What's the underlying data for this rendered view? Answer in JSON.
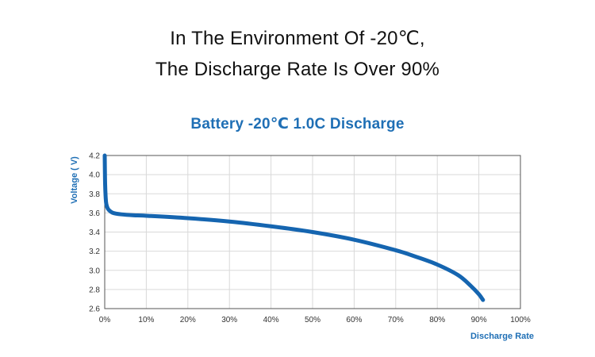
{
  "headline": {
    "line1": "In The Environment Of -20℃,",
    "line2": "The Discharge Rate Is Over 90%"
  },
  "colors": {
    "accent": "#1f6fb5",
    "curve": "#1565b0",
    "grid": "#d9d9d9",
    "frame": "#555555"
  },
  "chart_data": {
    "type": "line",
    "title": "Battery -20℃ 1.0C Discharge",
    "xlabel": "Discharge Rate",
    "ylabel": "Voltage ( V)",
    "xlim": [
      0,
      100
    ],
    "ylim": [
      2.6,
      4.2
    ],
    "x_ticks": [
      0,
      10,
      20,
      30,
      40,
      50,
      60,
      70,
      80,
      90,
      100
    ],
    "x_tick_labels": [
      "0%",
      "10%",
      "20%",
      "30%",
      "40%",
      "50%",
      "60%",
      "70%",
      "80%",
      "90%",
      "100%"
    ],
    "y_ticks": [
      2.6,
      2.8,
      3.0,
      3.2,
      3.4,
      3.6,
      3.8,
      4.0,
      4.2
    ],
    "y_tick_labels": [
      "2.6",
      "2.8",
      "3.0",
      "3.2",
      "3.4",
      "3.6",
      "3.8",
      "4.0",
      "4.2"
    ],
    "grid": true,
    "series": [
      {
        "name": "Battery -20℃ 1.0C Discharge",
        "x": [
          0,
          0.1,
          0.3,
          0.6,
          1,
          2,
          4,
          7,
          10,
          20,
          30,
          40,
          50,
          60,
          70,
          75,
          80,
          85,
          88,
          90,
          91
        ],
        "y": [
          4.2,
          3.9,
          3.72,
          3.66,
          3.63,
          3.6,
          3.585,
          3.575,
          3.57,
          3.545,
          3.51,
          3.46,
          3.4,
          3.32,
          3.21,
          3.14,
          3.06,
          2.95,
          2.84,
          2.75,
          2.69
        ]
      }
    ]
  }
}
